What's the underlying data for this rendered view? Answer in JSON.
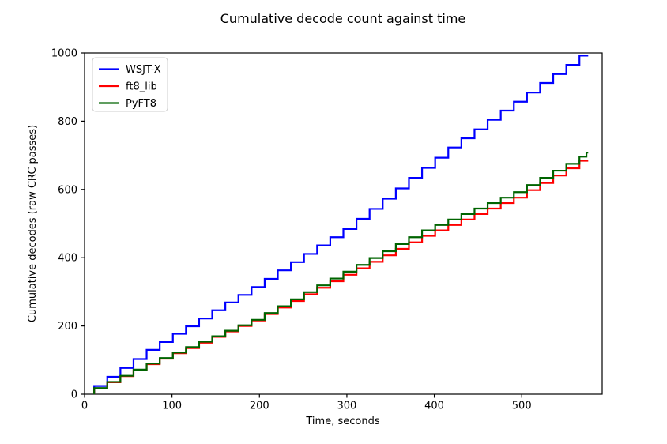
{
  "chart_data": {
    "type": "line",
    "subtype": "step-post",
    "title": "Cumulative decode count against time",
    "xlabel": "Time, seconds",
    "ylabel": "Cumulative decodes (raw CRC passes)",
    "xlim": [
      0,
      592
    ],
    "ylim": [
      0,
      1000
    ],
    "xticks": [
      0,
      100,
      200,
      300,
      400,
      500
    ],
    "yticks": [
      0,
      200,
      400,
      600,
      800,
      1000
    ],
    "grid": false,
    "legend_position": "upper left",
    "line_end_time": 576,
    "series": [
      {
        "name": "WSJT-X",
        "color": "#0000ff",
        "t": [
          11,
          26,
          41,
          56,
          71,
          86,
          101,
          116,
          131,
          146,
          161,
          176,
          191,
          206,
          221,
          236,
          251,
          266,
          281,
          296,
          311,
          326,
          341,
          356,
          371,
          386,
          401,
          416,
          431,
          446,
          461,
          476,
          491,
          506,
          521,
          536,
          551,
          566
        ],
        "values": [
          24,
          51,
          77,
          103,
          130,
          153,
          177,
          199,
          222,
          246,
          269,
          291,
          314,
          338,
          363,
          387,
          411,
          436,
          460,
          484,
          514,
          543,
          573,
          603,
          634,
          663,
          693,
          723,
          750,
          776,
          804,
          831,
          857,
          884,
          912,
          938,
          965,
          992
        ]
      },
      {
        "name": "ft8_lib",
        "color": "#ff0000",
        "t": [
          11,
          26,
          41,
          56,
          71,
          86,
          101,
          116,
          131,
          146,
          161,
          176,
          191,
          206,
          221,
          236,
          251,
          266,
          281,
          296,
          311,
          326,
          341,
          356,
          371,
          386,
          401,
          416,
          431,
          446,
          461,
          476,
          491,
          506,
          521,
          536,
          551,
          566
        ],
        "values": [
          17,
          35,
          53,
          70,
          88,
          104,
          120,
          135,
          151,
          168,
          184,
          200,
          216,
          235,
          254,
          273,
          293,
          312,
          331,
          350,
          369,
          388,
          407,
          426,
          445,
          464,
          480,
          496,
          512,
          528,
          544,
          560,
          576,
          598,
          619,
          641,
          662,
          684
        ]
      },
      {
        "name": "PyFT8",
        "color": "#006400",
        "t": [
          11,
          26,
          41,
          56,
          71,
          86,
          101,
          116,
          131,
          146,
          161,
          176,
          191,
          206,
          221,
          236,
          251,
          266,
          281,
          296,
          311,
          326,
          341,
          356,
          371,
          386,
          401,
          416,
          431,
          446,
          461,
          476,
          491,
          506,
          521,
          536,
          551,
          566,
          574
        ],
        "values": [
          18,
          36,
          54,
          72,
          90,
          106,
          122,
          138,
          154,
          170,
          186,
          202,
          218,
          238,
          258,
          278,
          299,
          319,
          339,
          359,
          379,
          399,
          419,
          440,
          460,
          480,
          496,
          512,
          528,
          544,
          560,
          576,
          592,
          613,
          634,
          655,
          675,
          696,
          708
        ]
      }
    ]
  }
}
